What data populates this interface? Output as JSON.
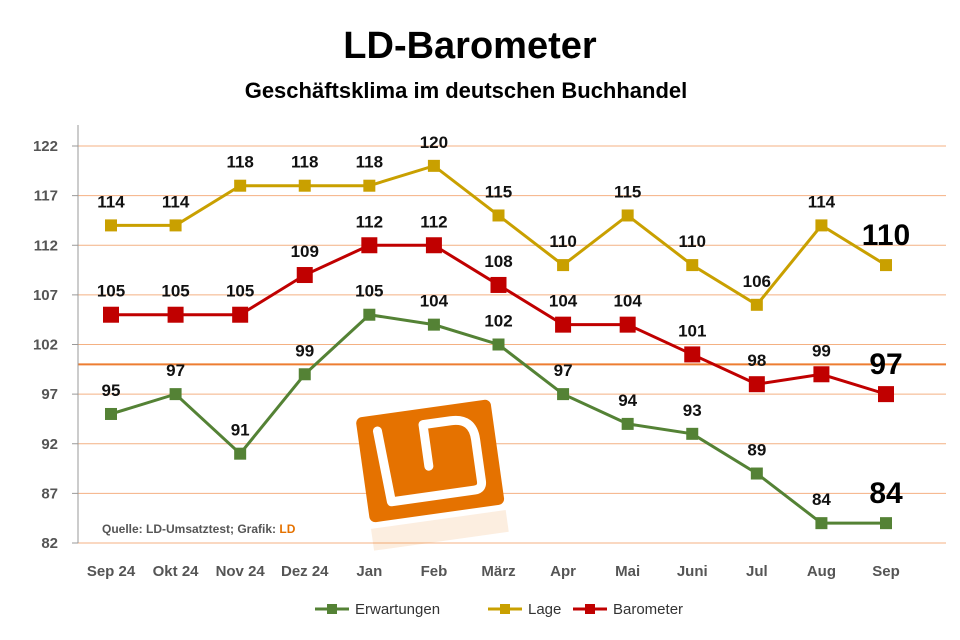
{
  "chart_data": {
    "type": "line",
    "title": "LD-Barometer",
    "subtitle": "Geschäftsklima im deutschen Buchhandel",
    "categories": [
      "Sep 24",
      "Okt 24",
      "Nov 24",
      "Dez 24",
      "Jan",
      "Feb",
      "März",
      "Apr",
      "Mai",
      "Juni",
      "Jul",
      "Aug",
      "Sep"
    ],
    "ylim": [
      82,
      122
    ],
    "yticks": [
      82,
      87,
      92,
      97,
      102,
      107,
      112,
      117,
      122
    ],
    "reference_line": 100,
    "grid": true,
    "legend_position": "bottom",
    "series": [
      {
        "name": "Erwartungen",
        "color": "#548235",
        "values": [
          95,
          97,
          91,
          99,
          105,
          104,
          102,
          97,
          94,
          93,
          89,
          84,
          84
        ]
      },
      {
        "name": "Lage",
        "color": "#C9A000",
        "values": [
          114,
          114,
          118,
          118,
          118,
          120,
          115,
          110,
          115,
          110,
          106,
          114,
          110
        ]
      },
      {
        "name": "Barometer",
        "color": "#C00000",
        "values": [
          105,
          105,
          105,
          109,
          112,
          112,
          108,
          104,
          104,
          101,
          98,
          99,
          97
        ]
      }
    ],
    "source": "Quelle: LD-Umsatztest; Grafik:",
    "source_brand": "LD"
  },
  "colors": {
    "grid": "#F4B183",
    "reference": "#ED7D31",
    "brand": "#E57200"
  }
}
